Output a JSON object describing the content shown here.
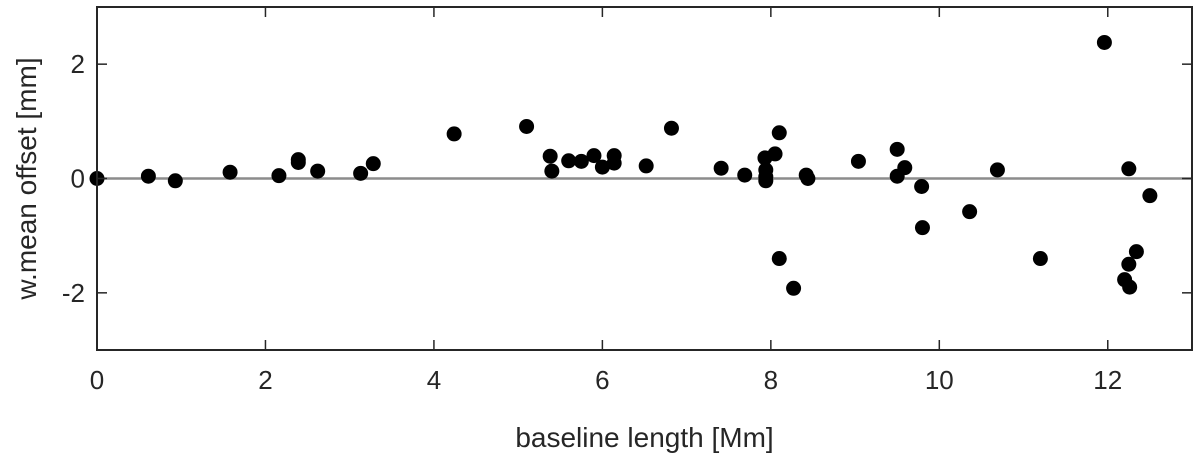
{
  "chart_data": {
    "type": "scatter",
    "title": "",
    "xlabel": "baseline length [Mm]",
    "ylabel": "w.mean offset [mm]",
    "xlim": [
      0,
      13
    ],
    "ylim": [
      -3,
      3
    ],
    "xticks": [
      0,
      2,
      4,
      6,
      8,
      10,
      12
    ],
    "yticks": [
      -2,
      0,
      2
    ],
    "x_tick_labels": [
      "0",
      "2",
      "4",
      "6",
      "8",
      "10",
      "12"
    ],
    "y_tick_labels": [
      "-2",
      "0",
      "2"
    ],
    "grid": false,
    "box": true,
    "zero_line": true,
    "colors": {
      "marker": "#000000",
      "zero_line": "#8c8c8c",
      "axes": "#262626"
    },
    "points": [
      {
        "x": 0.0,
        "y": 0.0
      },
      {
        "x": 0.61,
        "y": 0.04
      },
      {
        "x": 0.93,
        "y": -0.04
      },
      {
        "x": 1.58,
        "y": 0.11
      },
      {
        "x": 2.16,
        "y": 0.05
      },
      {
        "x": 2.39,
        "y": 0.28
      },
      {
        "x": 2.39,
        "y": 0.33
      },
      {
        "x": 2.62,
        "y": 0.13
      },
      {
        "x": 3.13,
        "y": 0.09
      },
      {
        "x": 3.28,
        "y": 0.26
      },
      {
        "x": 4.24,
        "y": 0.78
      },
      {
        "x": 5.1,
        "y": 0.91
      },
      {
        "x": 5.38,
        "y": 0.39
      },
      {
        "x": 5.4,
        "y": 0.13
      },
      {
        "x": 5.6,
        "y": 0.31
      },
      {
        "x": 5.75,
        "y": 0.3
      },
      {
        "x": 5.9,
        "y": 0.4
      },
      {
        "x": 6.0,
        "y": 0.2
      },
      {
        "x": 6.14,
        "y": 0.4
      },
      {
        "x": 6.14,
        "y": 0.27
      },
      {
        "x": 6.52,
        "y": 0.22
      },
      {
        "x": 6.82,
        "y": 0.88
      },
      {
        "x": 7.41,
        "y": 0.18
      },
      {
        "x": 7.69,
        "y": 0.06
      },
      {
        "x": 7.93,
        "y": 0.36
      },
      {
        "x": 7.94,
        "y": 0.15
      },
      {
        "x": 7.94,
        "y": 0.03
      },
      {
        "x": 7.94,
        "y": -0.04
      },
      {
        "x": 8.05,
        "y": 0.43
      },
      {
        "x": 8.1,
        "y": 0.8
      },
      {
        "x": 8.1,
        "y": -1.4
      },
      {
        "x": 8.27,
        "y": -1.92
      },
      {
        "x": 8.42,
        "y": 0.06
      },
      {
        "x": 8.44,
        "y": 0.0
      },
      {
        "x": 9.04,
        "y": 0.3
      },
      {
        "x": 9.5,
        "y": 0.51
      },
      {
        "x": 9.5,
        "y": 0.04
      },
      {
        "x": 9.59,
        "y": 0.19
      },
      {
        "x": 9.79,
        "y": -0.14
      },
      {
        "x": 9.8,
        "y": -0.86
      },
      {
        "x": 10.36,
        "y": -0.58
      },
      {
        "x": 10.69,
        "y": 0.15
      },
      {
        "x": 11.2,
        "y": -1.4
      },
      {
        "x": 11.96,
        "y": 2.38
      },
      {
        "x": 12.2,
        "y": -1.77
      },
      {
        "x": 12.25,
        "y": 0.17
      },
      {
        "x": 12.25,
        "y": -1.5
      },
      {
        "x": 12.26,
        "y": -1.9
      },
      {
        "x": 12.34,
        "y": -1.28
      },
      {
        "x": 12.5,
        "y": -0.3
      }
    ]
  }
}
